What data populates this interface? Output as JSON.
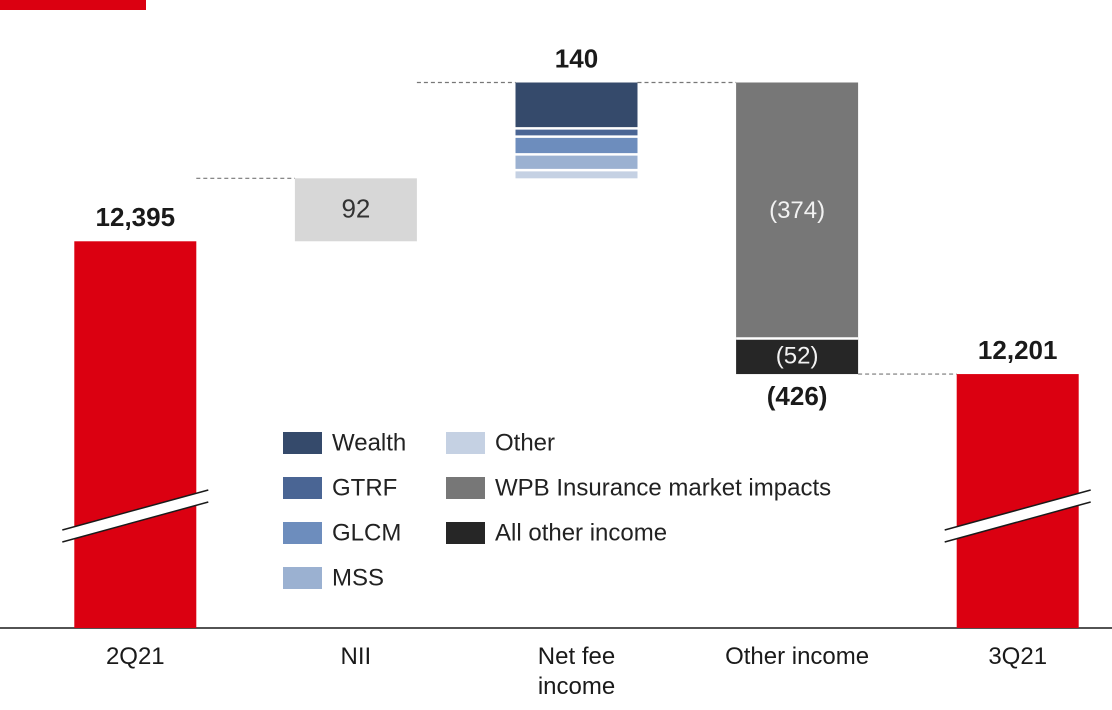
{
  "chart_data": {
    "type": "waterfall",
    "ylim": [
      11830,
      12730
    ],
    "bars": [
      {
        "category": "2Q21",
        "value": 12395,
        "value_label": "12,395",
        "color": "#db0011"
      },
      {
        "category": "NII",
        "segments": [
          {
            "value": 92,
            "color": "#d7d7d7",
            "show_value": true
          }
        ]
      },
      {
        "category": "Net fee\nincome",
        "total": 140,
        "segments": [
          {
            "name": "Wealth",
            "value": 67,
            "color": "#354a6b"
          },
          {
            "name": "GTRF",
            "value": 12,
            "color": "#4a6594"
          },
          {
            "name": "GLCM",
            "value": 26,
            "color": "#6d8dbd"
          },
          {
            "name": "MSS",
            "value": 23,
            "color": "#9bb1d1"
          },
          {
            "name": "Other",
            "value": 12,
            "color": "#c5d1e3"
          }
        ]
      },
      {
        "category": "Other income",
        "total": -426,
        "total_label": "(426)",
        "segments": [
          {
            "name": "WPB Insurance market impacts",
            "value": -374,
            "value_label": "(374)",
            "color": "#777777"
          },
          {
            "name": "All other income",
            "value": -52,
            "value_label": "(52)",
            "color": "#262626"
          }
        ]
      },
      {
        "category": "3Q21",
        "value": 12201,
        "value_label": "12,201",
        "color": "#db0011"
      }
    ]
  }
}
